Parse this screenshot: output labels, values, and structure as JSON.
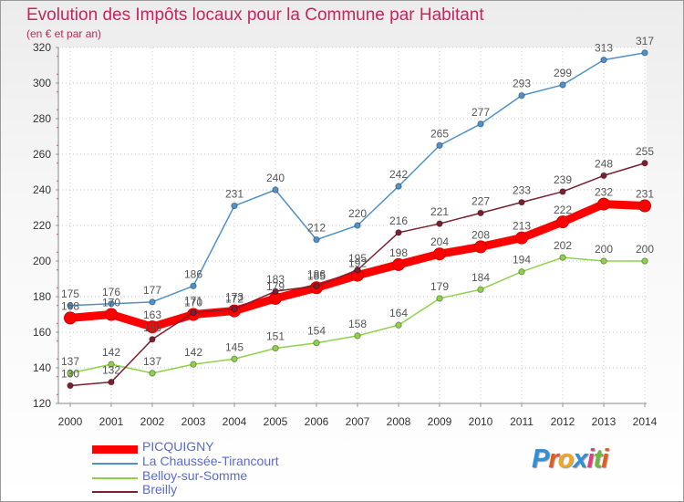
{
  "chart_data": {
    "type": "line",
    "title": "Evolution des Impôts locaux pour la Commune par Habitant",
    "subtitle": "(en € et par an)",
    "x": [
      "2000",
      "2001",
      "2002",
      "2003",
      "2004",
      "2005",
      "2006",
      "2007",
      "2008",
      "2009",
      "2010",
      "2011",
      "2012",
      "2013",
      "2014"
    ],
    "yticks": [
      "120",
      "140",
      "160",
      "180",
      "200",
      "220",
      "240",
      "260",
      "280",
      "300",
      "320"
    ],
    "ylim": [
      120,
      320
    ],
    "grid": "horizontal dotted",
    "legend_position": "bottom-left",
    "series": [
      {
        "name": "PICQUIGNY",
        "color": "#ff0000",
        "values": [
          168,
          170,
          163,
          170,
          172,
          179,
          185,
          192,
          198,
          204,
          208,
          213,
          222,
          232,
          231
        ],
        "labels": [
          "168",
          "170",
          "163",
          "170",
          "172",
          "179",
          "185",
          "192",
          "198",
          "204",
          "208",
          "213",
          "222",
          "232",
          "231"
        ]
      },
      {
        "name": "La Chaussée-Tirancourt",
        "color": "#4f91c8",
        "values": [
          175,
          176,
          177,
          186,
          231,
          240,
          212,
          220,
          242,
          265,
          277,
          293,
          299,
          313,
          317
        ],
        "labels": [
          "175",
          "176",
          "177",
          "186",
          "231",
          "240",
          "212",
          "220",
          "242",
          "265",
          "277",
          "293",
          "299",
          "313",
          "317"
        ]
      },
      {
        "name": "Belloy-sur-Somme",
        "color": "#8fd24a",
        "values": [
          137,
          142,
          137,
          142,
          145,
          151,
          154,
          158,
          164,
          179,
          184,
          194,
          202,
          200,
          200
        ],
        "labels": [
          "137",
          "142",
          "137",
          "142",
          "145",
          "151",
          "154",
          "158",
          "164",
          "179",
          "184",
          "194",
          "202",
          "200",
          "200"
        ]
      },
      {
        "name": "Breilly",
        "color": "#7a2030",
        "values": [
          130,
          132,
          156,
          171,
          173,
          183,
          186,
          195,
          216,
          221,
          227,
          233,
          239,
          248,
          255
        ],
        "labels": [
          "130",
          "132",
          "156",
          "171",
          "173",
          "183",
          "186",
          "195",
          "216",
          "221",
          "227",
          "233",
          "239",
          "248",
          "255"
        ]
      }
    ]
  },
  "branding": {
    "logo_letters": [
      "P",
      "r",
      "o",
      "x",
      "i",
      "t",
      "i"
    ],
    "logo_colors": [
      "#2f8fd8",
      "#e45b1c",
      "#f2a81d",
      "#2f8fd8",
      "#e23c7a",
      "#6cb83c",
      "#e45b1c"
    ]
  }
}
